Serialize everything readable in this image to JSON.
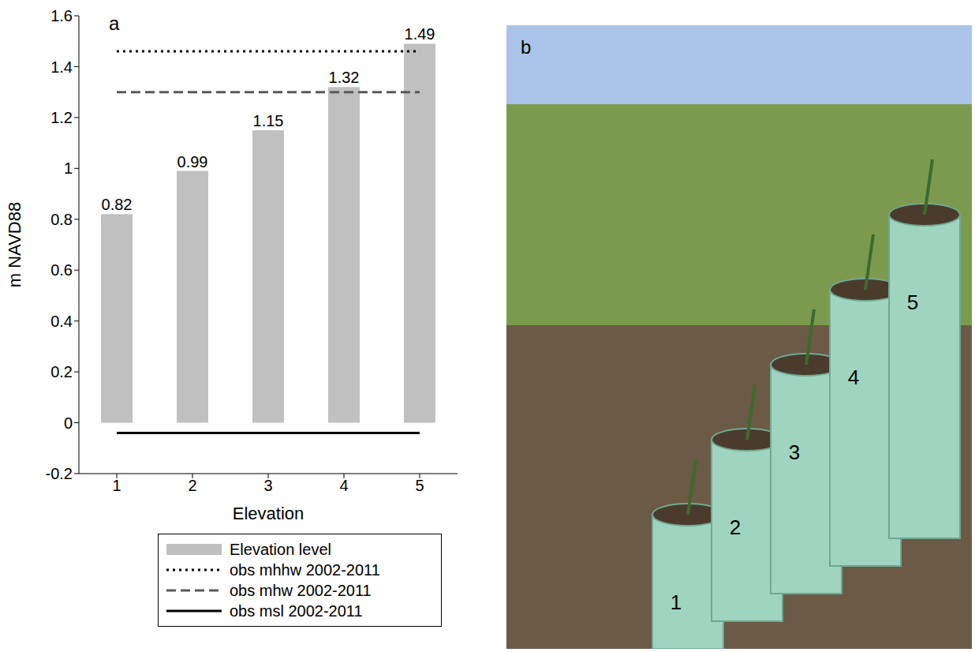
{
  "chart_data": {
    "type": "bar",
    "panel": "a",
    "x_label": "Elevation",
    "y_label": "m NAVD88",
    "categories": [
      "1",
      "2",
      "3",
      "4",
      "5"
    ],
    "series": [
      {
        "name": "Elevation level",
        "type": "bar",
        "color": "#c0c0c0",
        "values": [
          0.82,
          0.99,
          1.15,
          1.32,
          1.49
        ]
      },
      {
        "name": "obs mhhw 2002-2011",
        "type": "line",
        "color": "#000000",
        "line_style": "dotted",
        "values": [
          1.46,
          1.46,
          1.46,
          1.46,
          1.46
        ]
      },
      {
        "name": "obs mhw 2002-2011",
        "type": "line",
        "color": "#595959",
        "line_style": "dashed",
        "values": [
          1.3,
          1.3,
          1.3,
          1.3,
          1.3
        ]
      },
      {
        "name": "obs msl 2002-2011",
        "type": "line",
        "color": "#000000",
        "line_style": "solid",
        "values": [
          -0.04,
          -0.04,
          -0.04,
          -0.04,
          -0.04
        ]
      }
    ],
    "ylim": [
      -0.2,
      1.6
    ],
    "yticks": [
      -0.2,
      0,
      0.2,
      0.4,
      0.6,
      0.8,
      1,
      1.2,
      1.4,
      1.6
    ],
    "data_labels": true,
    "legend": "bottom",
    "grid": false
  },
  "photo": {
    "panel": "b",
    "tube_labels": [
      "1",
      "2",
      "3",
      "4",
      "5"
    ]
  }
}
